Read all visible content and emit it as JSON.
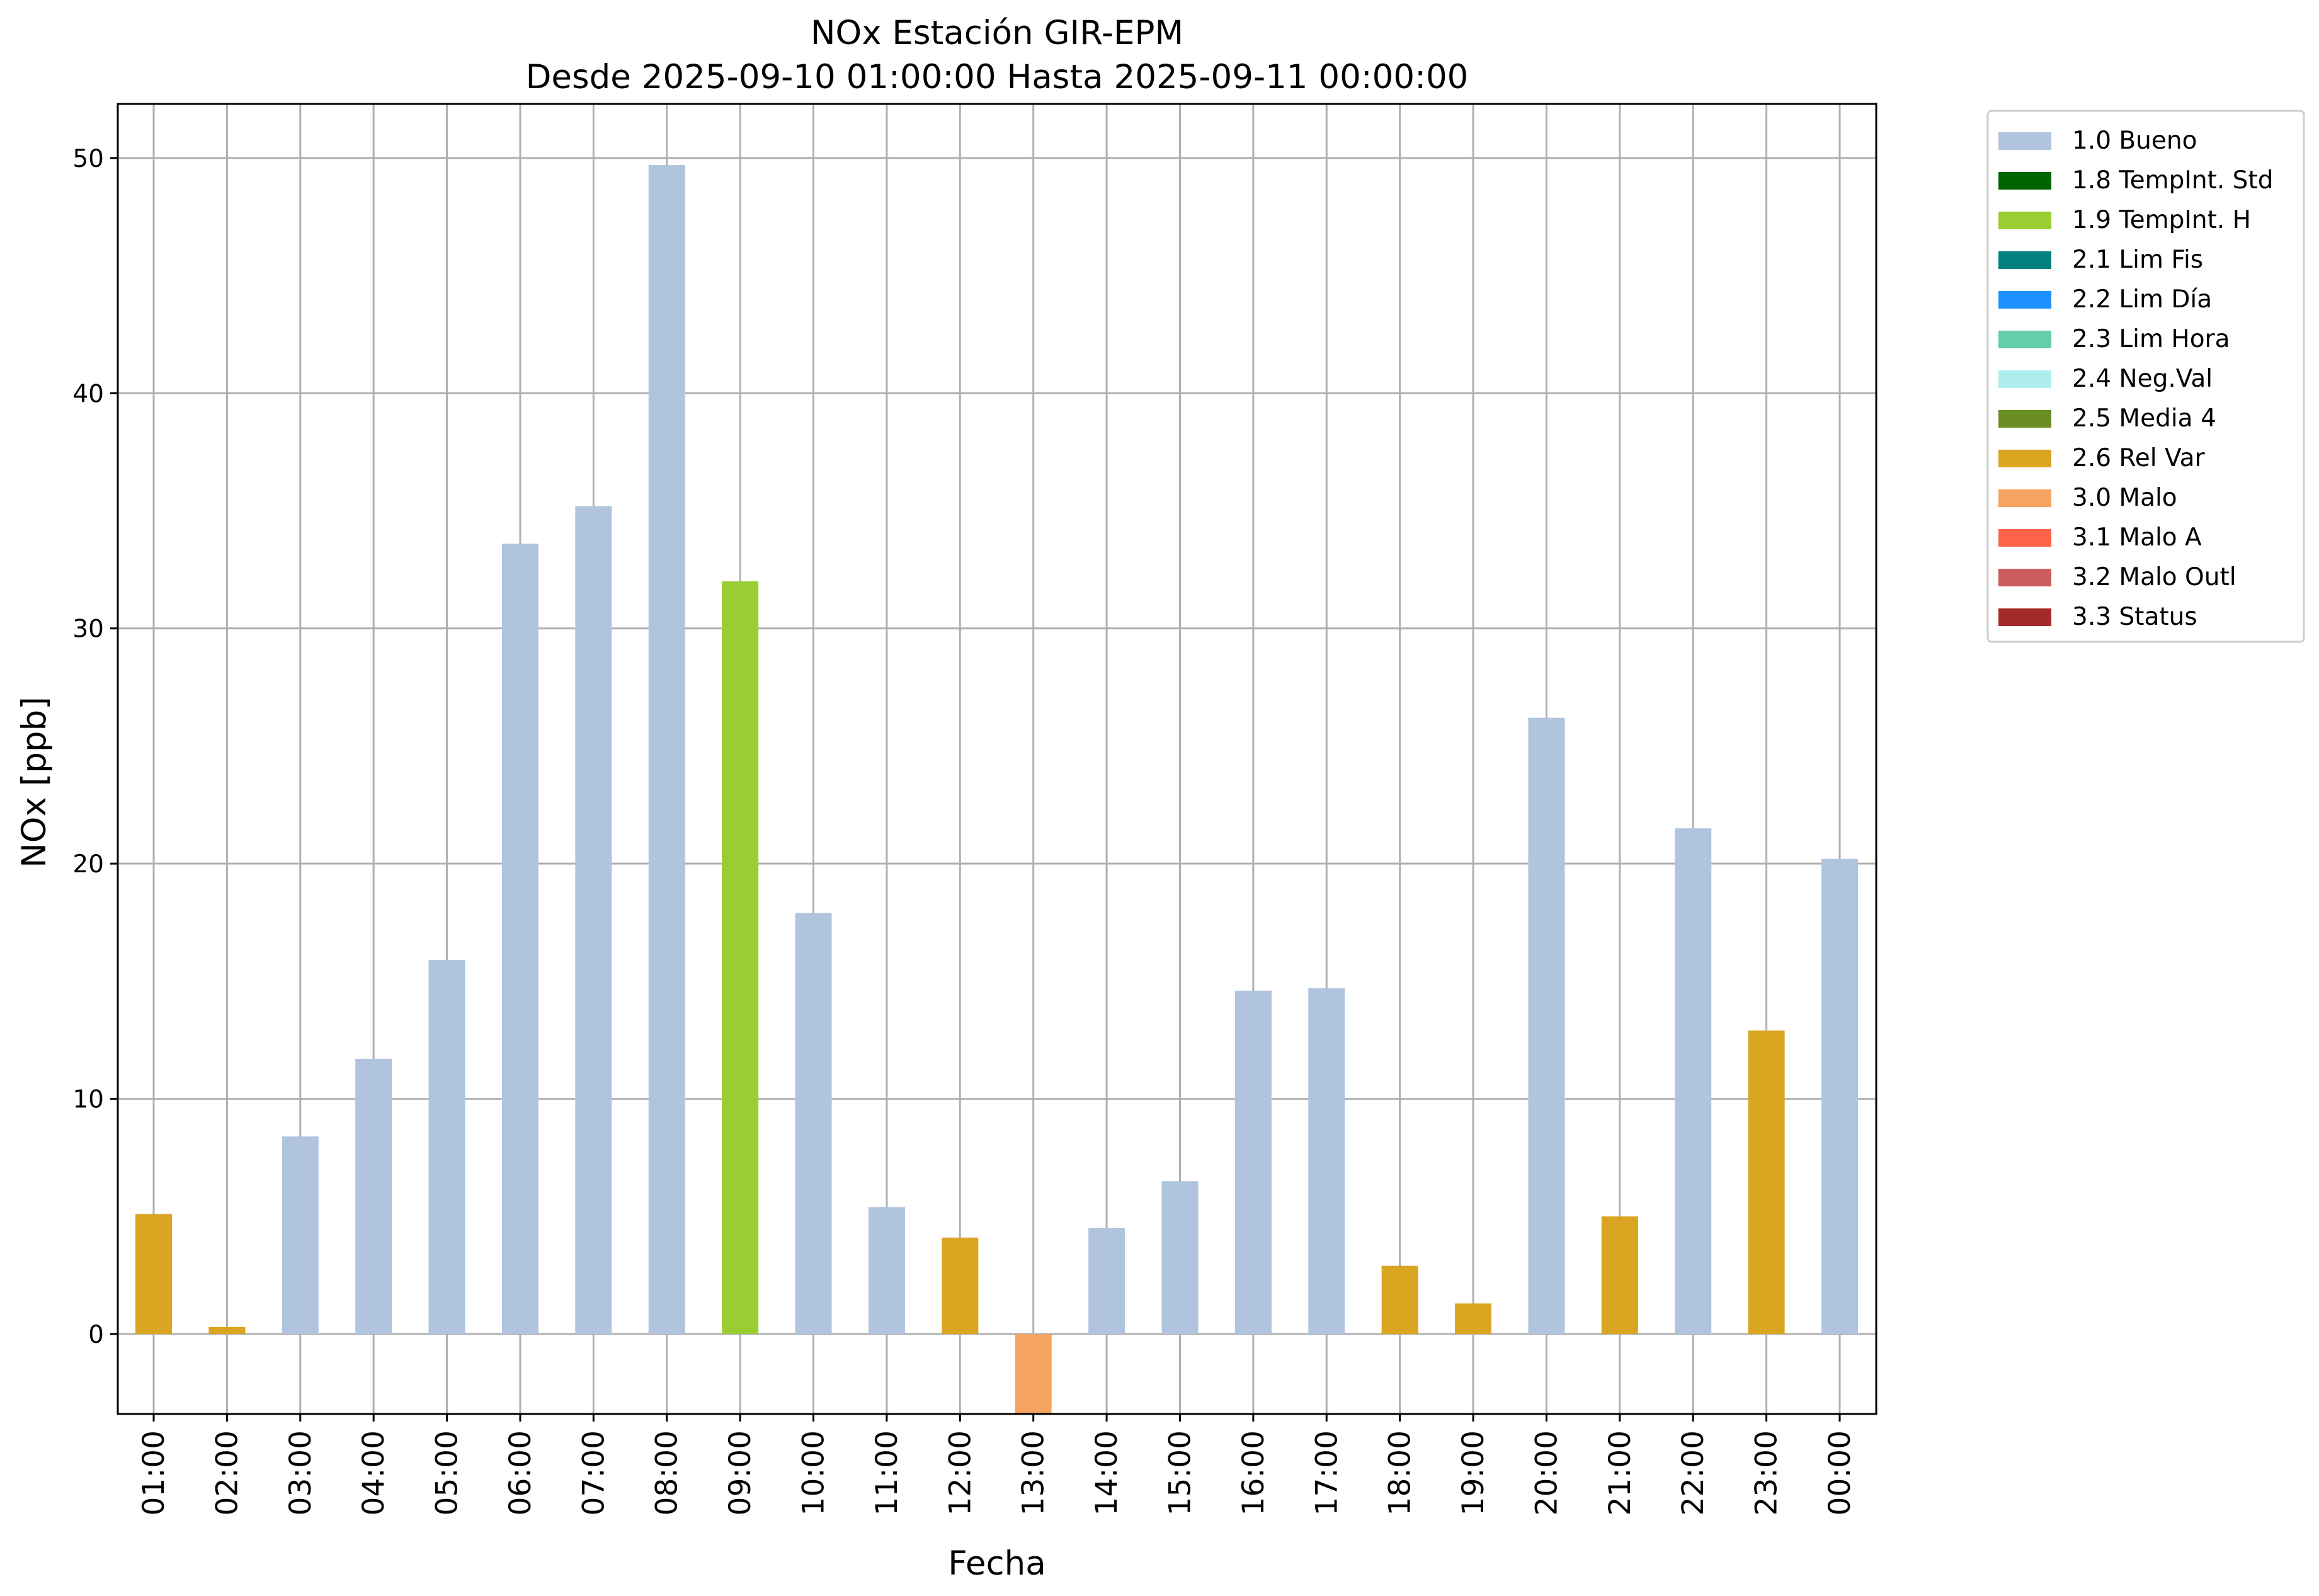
{
  "chart_data": {
    "type": "bar",
    "title": "NOx Estación GIR-EPM",
    "subtitle": "Desde 2025-09-10 01:00:00 Hasta 2025-09-11 00:00:00",
    "xlabel": "Fecha",
    "ylabel": "NOx [ppb]",
    "ylim": [
      -3.4,
      52.3
    ],
    "yticks": [
      0,
      10,
      20,
      30,
      40,
      50
    ],
    "grid": true,
    "legend_position": "outside-top-right",
    "categories": [
      "01:00",
      "02:00",
      "03:00",
      "04:00",
      "05:00",
      "06:00",
      "07:00",
      "08:00",
      "09:00",
      "10:00",
      "11:00",
      "12:00",
      "13:00",
      "14:00",
      "15:00",
      "16:00",
      "17:00",
      "18:00",
      "19:00",
      "20:00",
      "21:00",
      "22:00",
      "23:00",
      "00:00"
    ],
    "values": [
      5.1,
      0.3,
      8.4,
      11.7,
      15.9,
      33.6,
      35.2,
      49.7,
      32.0,
      17.9,
      5.4,
      4.1,
      -3.4,
      4.5,
      6.5,
      14.6,
      14.7,
      2.9,
      1.3,
      26.2,
      5.0,
      21.5,
      12.9,
      20.2
    ],
    "flags": [
      "2.6 Rel Var",
      "2.6 Rel Var",
      "1.0 Bueno",
      "1.0 Bueno",
      "1.0 Bueno",
      "1.0 Bueno",
      "1.0 Bueno",
      "1.0 Bueno",
      "1.9 TempInt. H",
      "1.0 Bueno",
      "1.0 Bueno",
      "2.6 Rel Var",
      "3.0 Malo",
      "1.0 Bueno",
      "1.0 Bueno",
      "1.0 Bueno",
      "1.0 Bueno",
      "2.6 Rel Var",
      "2.6 Rel Var",
      "1.0 Bueno",
      "2.6 Rel Var",
      "1.0 Bueno",
      "2.6 Rel Var",
      "1.0 Bueno"
    ],
    "legend": [
      {
        "name": "1.0 Bueno",
        "color": "#b0c4de"
      },
      {
        "name": "1.8 TempInt. Std",
        "color": "#006400"
      },
      {
        "name": "1.9 TempInt. H",
        "color": "#9acd32"
      },
      {
        "name": "2.1 Lim Fis",
        "color": "#008080"
      },
      {
        "name": "2.2 Lim Día",
        "color": "#1e90ff"
      },
      {
        "name": "2.3 Lim Hora",
        "color": "#66cdaa"
      },
      {
        "name": "2.4 Neg.Val",
        "color": "#afeeee"
      },
      {
        "name": "2.5 Media 4",
        "color": "#6b8e23"
      },
      {
        "name": "2.6 Rel Var",
        "color": "#daa520"
      },
      {
        "name": "3.0 Malo",
        "color": "#f4a460"
      },
      {
        "name": "3.1 Malo A",
        "color": "#ff6347"
      },
      {
        "name": "3.2 Malo Outl",
        "color": "#cd5c5c"
      },
      {
        "name": "3.3 Status",
        "color": "#a52a2a"
      }
    ]
  }
}
